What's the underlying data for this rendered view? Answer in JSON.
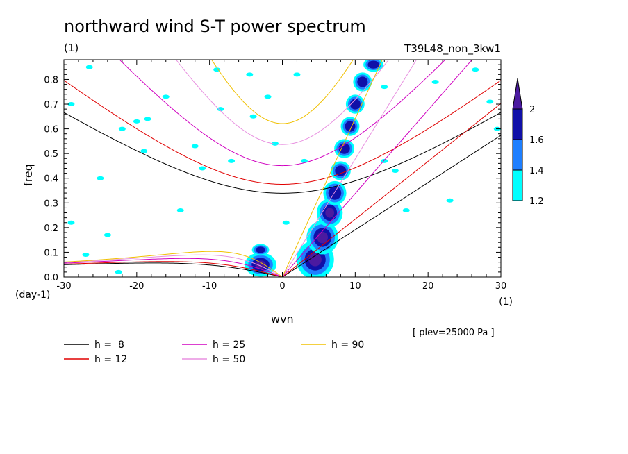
{
  "chart_data": {
    "type": "heatmap",
    "title": "northward wind S-T power spectrum",
    "subtitle_left": "(1)",
    "subtitle_right": "T39L48_non_3kw1",
    "xlabel": "wvn",
    "ylabel": "freq",
    "x_unit": "(1)",
    "y_unit": "(day-1)",
    "annotation": "[ plev=25000 Pa ]",
    "xlim": [
      -30,
      30
    ],
    "ylim": [
      0,
      0.88
    ],
    "x_ticks": [
      -30,
      -20,
      -10,
      0,
      10,
      20,
      30
    ],
    "x_tick_labels": [
      "-30",
      "-20",
      "-10",
      "0",
      "10",
      "20",
      "30"
    ],
    "y_ticks": [
      0,
      0.1,
      0.2,
      0.3,
      0.4,
      0.5,
      0.6,
      0.7,
      0.8
    ],
    "y_tick_labels": [
      "0.0",
      "0.1",
      "0.2",
      "0.3",
      "0.4",
      "0.5",
      "0.6",
      "0.7",
      "0.8"
    ],
    "colorbar": {
      "levels": [
        1.2,
        1.4,
        1.6,
        2
      ],
      "labels": [
        "1.2",
        "1.4",
        "1.6",
        "2"
      ],
      "colors": [
        "#00ffff",
        "#1e7fff",
        "#1010a8",
        "#4b1aa0"
      ]
    },
    "spectral_blobs": [
      {
        "x": 4.5,
        "y": 0.07,
        "rx": 2.2,
        "ry": 0.07,
        "level": 3
      },
      {
        "x": 5.5,
        "y": 0.16,
        "rx": 1.8,
        "ry": 0.06,
        "level": 3
      },
      {
        "x": 6.5,
        "y": 0.26,
        "rx": 1.4,
        "ry": 0.05,
        "level": 3
      },
      {
        "x": 7.2,
        "y": 0.34,
        "rx": 1.2,
        "ry": 0.04,
        "level": 2
      },
      {
        "x": 8.0,
        "y": 0.43,
        "rx": 1.0,
        "ry": 0.03,
        "level": 2
      },
      {
        "x": 8.5,
        "y": 0.52,
        "rx": 1.0,
        "ry": 0.03,
        "level": 2
      },
      {
        "x": 9.3,
        "y": 0.61,
        "rx": 0.9,
        "ry": 0.03,
        "level": 2
      },
      {
        "x": 10.0,
        "y": 0.7,
        "rx": 0.9,
        "ry": 0.03,
        "level": 2
      },
      {
        "x": 11.0,
        "y": 0.79,
        "rx": 0.9,
        "ry": 0.03,
        "level": 2
      },
      {
        "x": 12.5,
        "y": 0.86,
        "rx": 1.0,
        "ry": 0.02,
        "level": 2
      },
      {
        "x": -3.0,
        "y": 0.05,
        "rx": 1.8,
        "ry": 0.04,
        "level": 3
      },
      {
        "x": -3.0,
        "y": 0.11,
        "rx": 0.8,
        "ry": 0.015,
        "level": 2
      }
    ],
    "speckles": [
      [
        -29,
        0.7
      ],
      [
        -26.5,
        0.85
      ],
      [
        -22,
        0.6
      ],
      [
        -20,
        0.63
      ],
      [
        -16,
        0.73
      ],
      [
        -12,
        0.53
      ],
      [
        -14,
        0.27
      ],
      [
        -9,
        0.84
      ],
      [
        -7,
        0.47
      ],
      [
        -4.5,
        0.82
      ],
      [
        -4,
        0.65
      ],
      [
        -2,
        0.73
      ],
      [
        -1,
        0.54
      ],
      [
        2,
        0.82
      ],
      [
        -24,
        0.17
      ],
      [
        -27,
        0.09
      ],
      [
        -29,
        0.22
      ],
      [
        -22.5,
        0.02
      ],
      [
        -25,
        0.4
      ],
      [
        -19,
        0.51
      ],
      [
        -8.5,
        0.68
      ],
      [
        3,
        0.47
      ],
      [
        14,
        0.77
      ],
      [
        15.5,
        0.43
      ],
      [
        21,
        0.79
      ],
      [
        26.5,
        0.84
      ],
      [
        28.5,
        0.71
      ],
      [
        29.5,
        0.6
      ],
      [
        17,
        0.27
      ],
      [
        23,
        0.31
      ],
      [
        14,
        0.47
      ],
      [
        -18.5,
        0.64
      ],
      [
        -11,
        0.44
      ],
      [
        0.5,
        0.22
      ]
    ],
    "dispersion_curves": [
      {
        "label": "h =  8",
        "h": 8,
        "color": "#000000"
      },
      {
        "label": "h = 12",
        "h": 12,
        "color": "#e00000"
      },
      {
        "label": "h = 25",
        "h": 25,
        "color": "#d000c0"
      },
      {
        "label": "h = 50",
        "h": 50,
        "color": "#e890e0"
      },
      {
        "label": "h = 90",
        "h": 90,
        "color": "#f0c000"
      }
    ]
  }
}
